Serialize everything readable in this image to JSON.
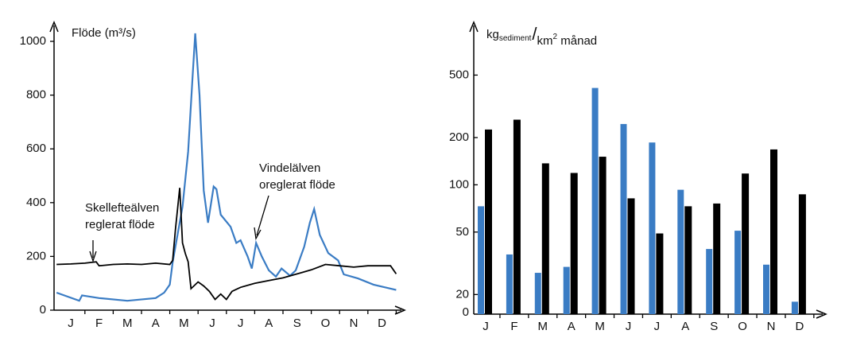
{
  "chart_data": [
    {
      "type": "line",
      "ylabel": "Flöde (m³/s)",
      "xlim": [
        0,
        12
      ],
      "xticks": [
        {
          "value": 0.5,
          "label": "J"
        },
        {
          "value": 1.5,
          "label": "F"
        },
        {
          "value": 2.5,
          "label": "M"
        },
        {
          "value": 3.5,
          "label": "A"
        },
        {
          "value": 4.5,
          "label": "M"
        },
        {
          "value": 5.5,
          "label": "J"
        },
        {
          "value": 6.5,
          "label": "J"
        },
        {
          "value": 7.5,
          "label": "A"
        },
        {
          "value": 8.5,
          "label": "S"
        },
        {
          "value": 9.5,
          "label": "O"
        },
        {
          "value": 10.5,
          "label": "N"
        },
        {
          "value": 11.5,
          "label": "D"
        }
      ],
      "ylim": [
        0,
        1050
      ],
      "yticks": [
        0,
        200,
        400,
        600,
        800,
        1000
      ],
      "series": [
        {
          "color": "#3a7cc4",
          "x": [
            0,
            0.8,
            0.9,
            1.5,
            2.5,
            3.5,
            3.8,
            4.0,
            4.1,
            4.45,
            4.65,
            4.8,
            4.9,
            5.05,
            5.2,
            5.35,
            5.55,
            5.65,
            5.8,
            6.15,
            6.35,
            6.5,
            6.75,
            6.9,
            7.05,
            7.25,
            7.5,
            7.75,
            7.95,
            8.25,
            8.45,
            8.75,
            8.95,
            9.1,
            9.3,
            9.6,
            9.95,
            10.15,
            10.65,
            11.2,
            12
          ],
          "values": [
            65,
            35,
            55,
            45,
            35,
            45,
            65,
            95,
            178,
            385,
            590,
            860,
            1030,
            800,
            445,
            325,
            460,
            450,
            355,
            310,
            250,
            260,
            200,
            155,
            250,
            200,
            148,
            125,
            155,
            128,
            148,
            236,
            325,
            376,
            280,
            212,
            185,
            133,
            118,
            95,
            75
          ]
        },
        {
          "color": "#000000",
          "x": [
            0,
            0.5,
            1.0,
            1.4,
            1.5,
            2,
            2.5,
            3,
            3.5,
            4,
            4.1,
            4.2,
            4.35,
            4.45,
            4.55,
            4.65,
            4.75,
            5.0,
            5.2,
            5.4,
            5.6,
            5.8,
            6.0,
            6.2,
            6.5,
            7,
            7.5,
            8,
            8.5,
            9,
            9.5,
            10,
            10.5,
            11,
            11.5,
            11.8,
            12
          ],
          "values": [
            170,
            172,
            175,
            180,
            165,
            170,
            172,
            170,
            175,
            170,
            185,
            300,
            455,
            250,
            210,
            180,
            80,
            105,
            90,
            70,
            40,
            60,
            40,
            70,
            85,
            100,
            110,
            120,
            135,
            150,
            170,
            165,
            160,
            165,
            165,
            165,
            135
          ]
        }
      ],
      "annotations": [
        [
          "Vindelälven",
          "oreglerat flöde"
        ],
        [
          "Skellefteälven",
          "reglerat flöde"
        ]
      ]
    },
    {
      "type": "bar",
      "ylabel_parts": [
        "kg",
        "sediment",
        "/",
        "km",
        "2",
        " månad"
      ],
      "log_scale": true,
      "categories": [
        "J",
        "F",
        "M",
        "A",
        "M",
        "J",
        "J",
        "A",
        "S",
        "O",
        "N",
        "D"
      ],
      "ylim": [
        15,
        1000
      ],
      "yticks": [
        20,
        50,
        100,
        200,
        500
      ],
      "origin_label": "0",
      "series": [
        {
          "color": "#3a7cc4",
          "values": [
            73,
            36,
            27.5,
            30,
            414,
            244,
            186,
            93,
            39,
            51,
            31,
            18
          ]
        },
        {
          "color": "#000000",
          "values": [
            225,
            260,
            137,
            119,
            151,
            82,
            49,
            73,
            76,
            118,
            168,
            87
          ]
        }
      ]
    }
  ]
}
